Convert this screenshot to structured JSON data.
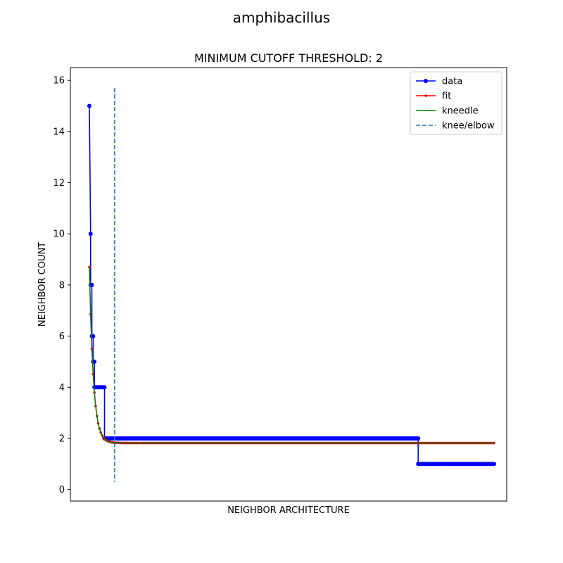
{
  "suptitle": "amphibacillus",
  "chart_data": {
    "type": "line",
    "title": "MINIMUM CUTOFF THRESHOLD: 2",
    "xlabel": "NEIGHBOR ARCHITECTURE",
    "ylabel": "NEIGHBOR COUNT",
    "xlim": [
      -15,
      330
    ],
    "ylim": [
      -0.45,
      16.5
    ],
    "yticks": [
      0,
      2,
      4,
      6,
      8,
      10,
      12,
      14,
      16
    ],
    "grid": false,
    "legend_position": "top-right",
    "knee_x": 20,
    "knee_line_yrange": [
      0.3,
      15.7
    ],
    "series": [
      {
        "name": "data",
        "color": "#0000ff",
        "marker": "circle",
        "segments": [
          {
            "x": [
              0,
              1
            ],
            "y": [
              15,
              10
            ]
          },
          {
            "x": [
              1,
              2
            ],
            "y": [
              8,
              8
            ]
          },
          {
            "x": [
              2,
              3
            ],
            "y": [
              6,
              6
            ]
          },
          {
            "x": [
              3,
              4
            ],
            "y": [
              5,
              5
            ]
          },
          {
            "x": [
              4,
              12
            ],
            "y": [
              4,
              4
            ]
          },
          {
            "x": [
              12,
              260
            ],
            "y": [
              2,
              2
            ]
          },
          {
            "x": [
              260,
              320
            ],
            "y": [
              1,
              1
            ]
          }
        ]
      },
      {
        "name": "fit",
        "color": "#ff0000",
        "marker": "small-dot",
        "curve": {
          "x_start": 0,
          "x_end": 320,
          "start_value": 8.7,
          "floor": 1.82,
          "decay_scale": 3.2
        }
      },
      {
        "name": "kneedle",
        "color": "#008000",
        "marker": "tiny-dot",
        "curve": {
          "x_start": 0,
          "x_end": 320,
          "start_value": 8.7,
          "floor": 1.82,
          "decay_scale": 3.2
        }
      },
      {
        "name": "knee/elbow",
        "color": "#1f77b4",
        "style": "dashed"
      }
    ]
  }
}
